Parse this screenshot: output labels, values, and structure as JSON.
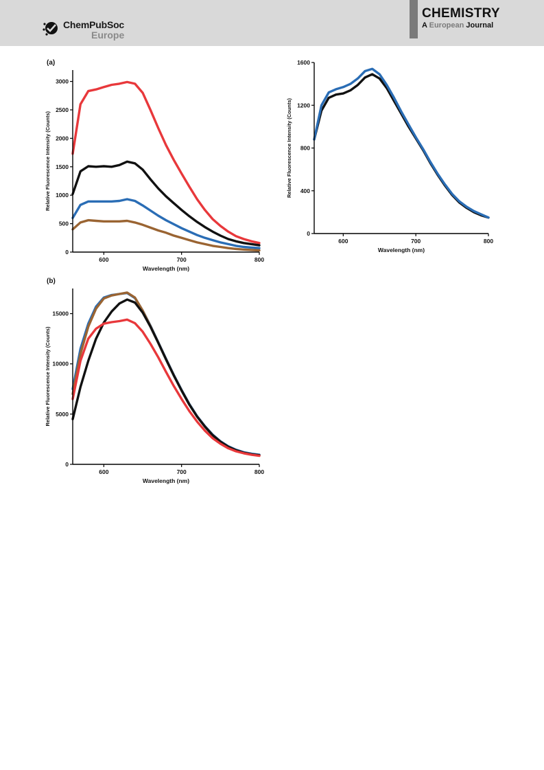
{
  "header": {
    "publisher_name": "ChemPubSoc",
    "publisher_region": "Europe",
    "journal_title": "CHEMISTRY",
    "journal_subtitle_a": "A",
    "journal_subtitle_european": "European",
    "journal_subtitle_journal": "Journal"
  },
  "colors": {
    "header_bg": "#d9d9d9",
    "red": "#e8383b",
    "black": "#111111",
    "blue": "#2a6db5",
    "brown": "#9a6432"
  },
  "chart_data": [
    {
      "type": "line",
      "panel_label": "(a)",
      "xlabel": "Wavelength (nm)",
      "ylabel": "Relative Fluorescence Intensity (Counts)",
      "xlim": [
        560,
        800
      ],
      "ylim": [
        0,
        3200
      ],
      "xticks": [
        600,
        700,
        800
      ],
      "yticks": [
        0,
        500,
        1000,
        1500,
        2000,
        2500,
        3000
      ],
      "grid": false,
      "legend": "none",
      "x": [
        560,
        570,
        580,
        590,
        600,
        610,
        620,
        630,
        640,
        650,
        660,
        670,
        680,
        690,
        700,
        710,
        720,
        730,
        740,
        750,
        760,
        770,
        780,
        790,
        800
      ],
      "series": [
        {
          "color": "#e8383b",
          "values": [
            1730,
            2600,
            2830,
            2860,
            2900,
            2940,
            2960,
            2990,
            2960,
            2800,
            2500,
            2180,
            1880,
            1620,
            1380,
            1150,
            930,
            740,
            580,
            460,
            360,
            280,
            230,
            190,
            160
          ]
        },
        {
          "color": "#111111",
          "values": [
            1020,
            1420,
            1510,
            1500,
            1510,
            1500,
            1530,
            1590,
            1560,
            1450,
            1280,
            1120,
            980,
            860,
            740,
            630,
            530,
            440,
            360,
            290,
            230,
            190,
            160,
            140,
            120
          ]
        },
        {
          "color": "#2a6db5",
          "values": [
            600,
            830,
            890,
            890,
            890,
            890,
            900,
            930,
            900,
            820,
            730,
            640,
            560,
            490,
            420,
            360,
            300,
            250,
            210,
            170,
            140,
            110,
            90,
            80,
            70
          ]
        },
        {
          "color": "#9a6432",
          "values": [
            400,
            520,
            560,
            550,
            540,
            540,
            540,
            550,
            520,
            480,
            430,
            380,
            340,
            290,
            250,
            210,
            170,
            140,
            110,
            90,
            70,
            55,
            45,
            38,
            30
          ]
        }
      ]
    },
    {
      "type": "line",
      "panel_label": "",
      "xlabel": "Wavelength (nm)",
      "ylabel": "Relative Fluorescence Intensity (Counts)",
      "xlim": [
        560,
        800
      ],
      "ylim": [
        0,
        1600
      ],
      "xticks": [
        600,
        700,
        800
      ],
      "yticks": [
        0,
        400,
        800,
        1200,
        1600
      ],
      "grid": false,
      "legend": "none",
      "x": [
        560,
        570,
        580,
        590,
        600,
        610,
        620,
        630,
        640,
        650,
        660,
        670,
        680,
        690,
        700,
        710,
        720,
        730,
        740,
        750,
        760,
        770,
        780,
        790,
        800
      ],
      "series": [
        {
          "color": "#111111",
          "values": [
            880,
            1150,
            1270,
            1300,
            1310,
            1340,
            1390,
            1460,
            1490,
            1450,
            1360,
            1240,
            1120,
            1000,
            890,
            780,
            660,
            550,
            450,
            360,
            290,
            240,
            200,
            170,
            150
          ]
        },
        {
          "color": "#2a6db5",
          "values": [
            880,
            1200,
            1320,
            1350,
            1370,
            1400,
            1450,
            1520,
            1540,
            1490,
            1390,
            1270,
            1140,
            1020,
            900,
            790,
            670,
            560,
            460,
            370,
            300,
            250,
            210,
            180,
            150
          ]
        }
      ]
    },
    {
      "type": "line",
      "panel_label": "(b)",
      "xlabel": "Wavelength (nm)",
      "ylabel": "Relative Fluorescence Intensity (Counts)",
      "xlim": [
        560,
        800
      ],
      "ylim": [
        0,
        17500
      ],
      "xticks": [
        600,
        700,
        800
      ],
      "yticks": [
        0,
        5000,
        10000,
        15000
      ],
      "grid": false,
      "legend": "none",
      "x": [
        560,
        570,
        580,
        590,
        600,
        610,
        620,
        630,
        640,
        650,
        660,
        670,
        680,
        690,
        700,
        710,
        720,
        730,
        740,
        750,
        760,
        770,
        780,
        790,
        800
      ],
      "series": [
        {
          "color": "#2a6db5",
          "values": [
            7500,
            11500,
            14000,
            15700,
            16600,
            16850,
            16950,
            17050,
            16550,
            15300,
            13800,
            12150,
            10500,
            8900,
            7400,
            6000,
            4800,
            3800,
            2950,
            2300,
            1800,
            1450,
            1200,
            1050,
            950
          ]
        },
        {
          "color": "#9a6432",
          "values": [
            7000,
            11000,
            13700,
            15500,
            16500,
            16800,
            16950,
            17100,
            16600,
            15300,
            13750,
            12100,
            10450,
            8850,
            7350,
            5950,
            4750,
            3750,
            2900,
            2250,
            1750,
            1400,
            1150,
            1000,
            900
          ]
        },
        {
          "color": "#111111",
          "values": [
            4500,
            7700,
            10300,
            12500,
            14100,
            15200,
            16000,
            16400,
            16100,
            15100,
            13700,
            12100,
            10450,
            8850,
            7350,
            5950,
            4750,
            3750,
            2900,
            2250,
            1750,
            1400,
            1150,
            1000,
            900
          ]
        },
        {
          "color": "#e8383b",
          "values": [
            6500,
            10300,
            12500,
            13500,
            14000,
            14150,
            14250,
            14400,
            14050,
            13200,
            12000,
            10650,
            9200,
            7800,
            6500,
            5300,
            4250,
            3350,
            2600,
            2050,
            1600,
            1300,
            1100,
            950,
            850
          ]
        }
      ]
    }
  ]
}
